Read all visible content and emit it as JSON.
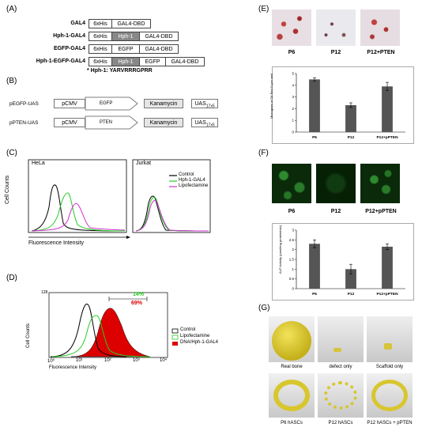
{
  "panel_labels": {
    "a": "(A)",
    "b": "(B)",
    "c": "(C)",
    "d": "(D)",
    "e": "(E)",
    "f": "(F)",
    "g": "(G)"
  },
  "constructs": [
    {
      "name": "GAL4",
      "boxes": [
        "6xHis",
        "GAL4-DBD"
      ]
    },
    {
      "name": "Hph-1-GAL4",
      "boxes": [
        "6xHis",
        "Hph-1",
        "GAL4-DBD"
      ]
    },
    {
      "name": "EGFP-GAL4",
      "boxes": [
        "6xHis",
        "EGFP",
        "GAL4-DBD"
      ]
    },
    {
      "name": "Hph-1-EGFP-GAL4",
      "boxes": [
        "6xHis",
        "Hph-1",
        "EGFP",
        "GAL4-DBD"
      ]
    }
  ],
  "hph_note": "* Hph-1: YARVRRRGPRR",
  "vectors": [
    {
      "name": "pEGFP-UAS",
      "boxes": [
        "pCMV",
        "EGFP",
        "Kanamycin",
        "UAS"
      ],
      "uas_sub": "17x5"
    },
    {
      "name": "pPTEN-UAS",
      "boxes": [
        "pCMV",
        "PTEN",
        "Kanamycin",
        "UAS"
      ],
      "uas_sub": "17x5"
    }
  ],
  "panel_c": {
    "ylabel": "Cell Counts",
    "xlabel": "Fluorescence Intensity",
    "left_label": "HeLa",
    "right_label": "Jurkat",
    "legend": [
      {
        "name": "Control",
        "color": "#000000"
      },
      {
        "name": "Hph-1-GAL4",
        "color": "#22cc22"
      },
      {
        "name": "Lipofectamine",
        "color": "#cc33cc"
      }
    ]
  },
  "panel_d": {
    "ylabel": "Cell Counts",
    "xlabel": "Fluorescence Intensity",
    "ytick_top": "128",
    "xticks": [
      "10⁰",
      "10¹",
      "10²",
      "10³",
      "10⁴"
    ],
    "pct_green": "14%",
    "pct_red": "69%",
    "legend": [
      {
        "name": "Control",
        "color": "#000000"
      },
      {
        "name": "Lipofectamine",
        "color": "#22cc22"
      },
      {
        "name": "DNA/Hph-1-GAL4",
        "color": "#dd0000"
      }
    ]
  },
  "panel_e": {
    "image_labels": [
      "P6",
      "P12",
      "P12+PTEN"
    ],
    "ylabel": "Microgram of Oil Red O per well"
  },
  "panel_f": {
    "image_labels": [
      "P6",
      "P12",
      "P12+pPTEN"
    ],
    "ylabel": "ALP Activity (pmol/mg protein/min)"
  },
  "panel_g": {
    "image_labels": [
      "Real bone",
      "defect only",
      "Scaffold only",
      "P6 hASCs",
      "P12 hASCs",
      "P12 hASCs + pPTEN"
    ]
  },
  "chart_data": [
    {
      "type": "bar",
      "title": "",
      "categories": [
        "P6",
        "P12",
        "P12+pPTEN"
      ],
      "values": [
        4.5,
        2.3,
        3.9
      ],
      "errors": [
        0.15,
        0.2,
        0.35
      ],
      "ylim": [
        0,
        5
      ],
      "yticks": [
        "0",
        "1",
        "2",
        "3",
        "4",
        "5"
      ],
      "ylabel": "Microgram of Oil Red O per well",
      "bar_color": "#555555"
    },
    {
      "type": "bar",
      "title": "",
      "categories": [
        "P6",
        "P12",
        "P12+pPTEN"
      ],
      "values": [
        2.3,
        1.0,
        2.15
      ],
      "errors": [
        0.2,
        0.25,
        0.15
      ],
      "ylim": [
        0,
        3
      ],
      "yticks": [
        "0",
        "0.5",
        "1",
        "1.5",
        "2",
        "2.5",
        "3"
      ],
      "ylabel": "ALP Activity (pmol/mg protein/min)",
      "bar_color": "#555555"
    }
  ]
}
